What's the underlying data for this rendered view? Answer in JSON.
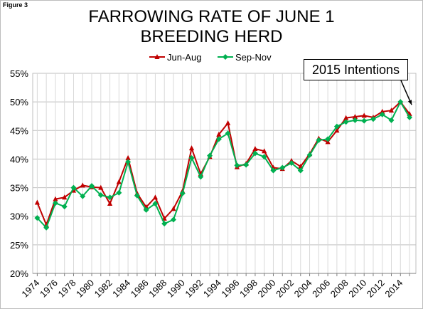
{
  "figure_label": "Figure 3",
  "callout_text": "2015 Intentions",
  "chart_data": {
    "type": "line",
    "title_lines": [
      "FARROWING RATE OF JUNE 1",
      "BREEDING HERD"
    ],
    "xlabel": "",
    "ylabel": "",
    "ylim": [
      20,
      55
    ],
    "y_ticks": [
      "20%",
      "25%",
      "30%",
      "35%",
      "40%",
      "45%",
      "50%",
      "55%"
    ],
    "y_tick_values": [
      20,
      25,
      30,
      35,
      40,
      45,
      50,
      55
    ],
    "x_tick_labels": [
      "1974",
      "1976",
      "1978",
      "1980",
      "1982",
      "1984",
      "1986",
      "1988",
      "1990",
      "1992",
      "1994",
      "1996",
      "1998",
      "2000",
      "2002",
      "2004",
      "2006",
      "2008",
      "2010",
      "2012",
      "2014"
    ],
    "x": [
      1974,
      1975,
      1976,
      1977,
      1978,
      1979,
      1980,
      1981,
      1982,
      1983,
      1984,
      1985,
      1986,
      1987,
      1988,
      1989,
      1990,
      1991,
      1992,
      1993,
      1994,
      1995,
      1996,
      1997,
      1998,
      1999,
      2000,
      2001,
      2002,
      2003,
      2004,
      2005,
      2006,
      2007,
      2008,
      2009,
      2010,
      2011,
      2012,
      2013,
      2014,
      2015
    ],
    "grid": true,
    "legend_position": "top",
    "series": [
      {
        "name": "Jun-Aug",
        "color": "#c00000",
        "marker": "triangle",
        "values": [
          32.4,
          28.5,
          33.0,
          33.3,
          34.5,
          35.4,
          35.1,
          35.0,
          32.2,
          36.0,
          40.2,
          34.0,
          31.6,
          33.3,
          29.6,
          31.3,
          34.4,
          41.9,
          37.4,
          40.4,
          44.3,
          46.3,
          38.6,
          39.2,
          41.8,
          41.4,
          38.5,
          38.3,
          39.7,
          38.7,
          40.9,
          43.6,
          43.0,
          45.0,
          47.2,
          47.4,
          47.6,
          47.3,
          48.3,
          48.5,
          50.0,
          47.9
        ]
      },
      {
        "name": "Sep-Nov",
        "color": "#00b050",
        "marker": "diamond",
        "values": [
          29.7,
          28.0,
          32.3,
          31.7,
          35.0,
          33.5,
          35.3,
          33.7,
          33.3,
          34.1,
          39.5,
          33.6,
          31.1,
          32.2,
          28.7,
          29.4,
          34.0,
          40.2,
          36.9,
          40.6,
          43.5,
          44.5,
          38.9,
          39.0,
          41.0,
          40.4,
          38.0,
          38.5,
          39.3,
          38.0,
          40.7,
          43.3,
          43.5,
          45.7,
          46.5,
          46.8,
          46.7,
          47.0,
          47.8,
          46.8,
          50.0,
          47.3
        ]
      }
    ]
  }
}
